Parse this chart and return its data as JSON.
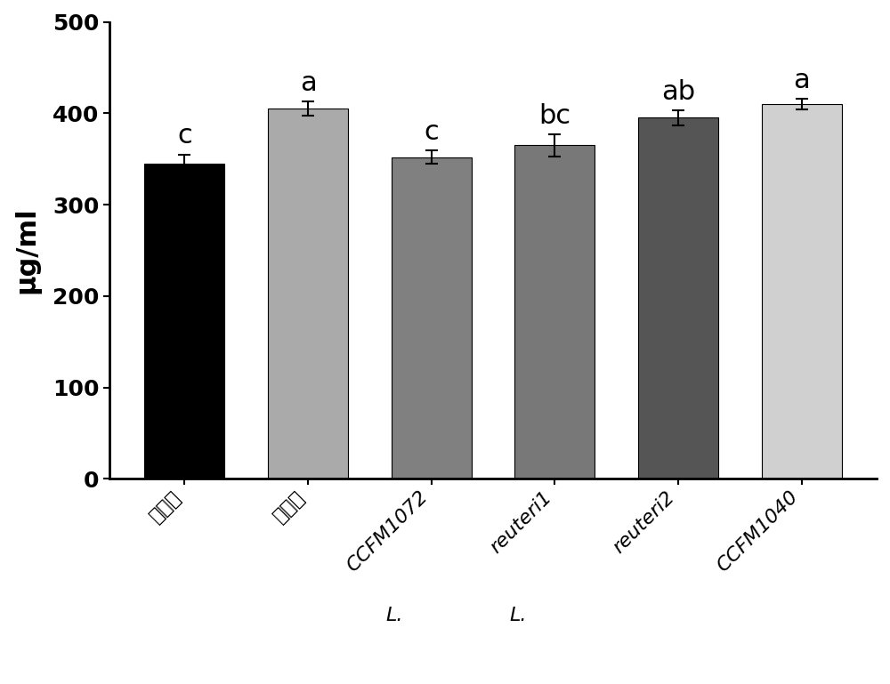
{
  "categories": [
    "空白组",
    "模型组",
    "CCFM1072",
    "reuteri1",
    "reuteri2",
    "CCFM1040"
  ],
  "values": [
    345,
    405,
    352,
    365,
    395,
    410
  ],
  "errors": [
    10,
    8,
    7,
    12,
    8,
    6
  ],
  "bar_colors": [
    "#000000",
    "#aaaaaa",
    "#808080",
    "#787878",
    "#555555",
    "#d0d0d0"
  ],
  "stat_labels": [
    "c",
    "a",
    "c",
    "bc",
    "ab",
    "a"
  ],
  "stat_label_fontsize": 22,
  "ylabel": "μg/ml",
  "ylabel_fontsize": 22,
  "ylim": [
    0,
    500
  ],
  "yticks": [
    0,
    100,
    200,
    300,
    400,
    500
  ],
  "ytick_fontsize": 18,
  "xtick_fontsize": 16,
  "bar_width": 0.65,
  "background_color": "#ffffff",
  "edge_color": "#000000",
  "capsize": 5,
  "error_linewidth": 1.5,
  "L_labels": [
    false,
    false,
    true,
    true,
    false,
    false
  ]
}
